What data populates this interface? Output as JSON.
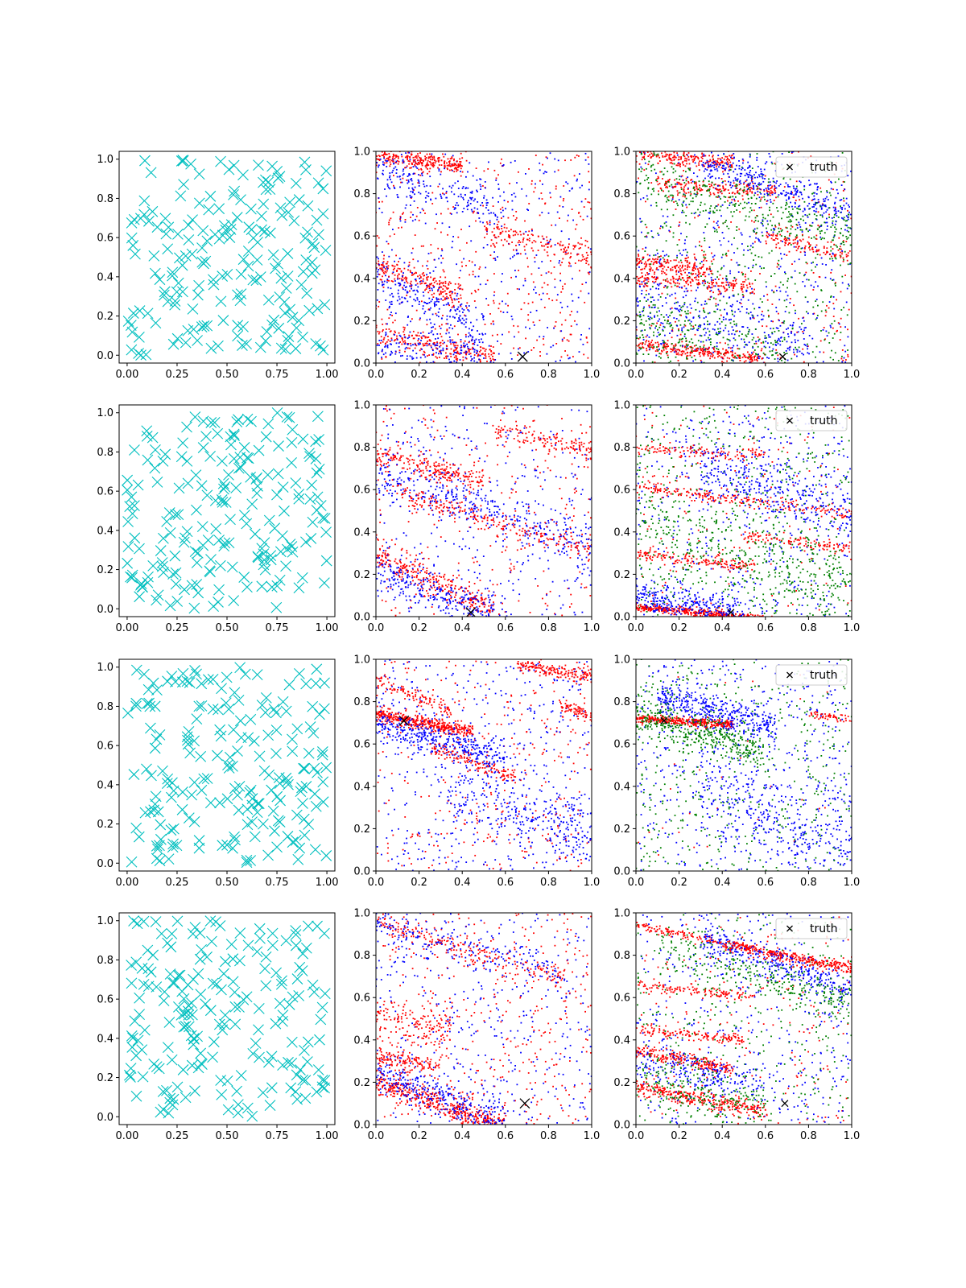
{
  "figure": {
    "rows": 4,
    "columns": 3
  },
  "colors": {
    "samples": "#00bfbf",
    "series_red": "#ff0000",
    "series_blue": "#0000ff",
    "series_green": "#008000",
    "truth": "#000000",
    "axes": "#000000"
  },
  "ticks": {
    "left_column_x": [
      "0.00",
      "0.25",
      "0.50",
      "0.75",
      "1.00"
    ],
    "left_column_y": [
      "0.0",
      "0.2",
      "0.4",
      "0.6",
      "0.8",
      "1.0"
    ],
    "right_columns_x": [
      "0.0",
      "0.2",
      "0.4",
      "0.6",
      "0.8",
      "1.0"
    ],
    "right_columns_y": [
      "0.0",
      "0.2",
      "0.4",
      "0.6",
      "0.8",
      "1.0"
    ]
  },
  "legend": {
    "truth_label": "truth",
    "placement": "upper right",
    "shown_in_column": 3
  },
  "chart_data": [
    {
      "type": "scatter",
      "row": 1,
      "column": 1,
      "marker": "x",
      "color": "samples",
      "points": 200,
      "xlim": [
        -0.04,
        1.04
      ],
      "ylim": [
        -0.04,
        1.04
      ],
      "seed": 11
    },
    {
      "type": "scatter",
      "row": 1,
      "column": 2,
      "xlim": [
        0,
        1
      ],
      "ylim": [
        0,
        1
      ],
      "truth": [
        0.68,
        0.03
      ],
      "seed": 12,
      "bands": [
        {
          "color": "series_red",
          "x0": 0.0,
          "y0": 0.98,
          "slope": -0.12,
          "xmax": 0.4,
          "count": 260,
          "spread": 0.02
        },
        {
          "color": "series_blue",
          "x0": 0.0,
          "y0": 0.93,
          "slope": -0.35,
          "xmax": 0.6,
          "count": 180,
          "spread": 0.05
        },
        {
          "color": "series_red",
          "x0": 0.0,
          "y0": 0.46,
          "slope": -0.35,
          "xmax": 0.4,
          "count": 200,
          "spread": 0.03
        },
        {
          "color": "series_blue",
          "x0": 0.0,
          "y0": 0.4,
          "slope": -0.5,
          "xmax": 0.5,
          "count": 220,
          "spread": 0.06
        },
        {
          "color": "series_red",
          "x0": 0.0,
          "y0": 0.14,
          "slope": -0.22,
          "xmax": 0.55,
          "count": 220,
          "spread": 0.03
        },
        {
          "color": "series_blue",
          "x0": 0.0,
          "y0": 0.09,
          "slope": -0.15,
          "xmax": 0.5,
          "count": 140,
          "spread": 0.04
        },
        {
          "color": "series_red",
          "x0": 0.5,
          "y0": 0.63,
          "slope": -0.25,
          "xmax": 1.0,
          "count": 150,
          "spread": 0.03
        }
      ],
      "scatter_noise": [
        {
          "color": "series_red",
          "count": 400
        },
        {
          "color": "series_blue",
          "count": 350
        }
      ]
    },
    {
      "type": "scatter",
      "row": 1,
      "column": 3,
      "xlim": [
        0,
        1
      ],
      "ylim": [
        0,
        1
      ],
      "truth": [
        0.68,
        0.03
      ],
      "seed": 13,
      "bands": [
        {
          "color": "series_red",
          "x0": 0.0,
          "y0": 0.99,
          "slope": -0.1,
          "xmax": 0.45,
          "count": 200,
          "spread": 0.02
        },
        {
          "color": "series_red",
          "x0": 0.1,
          "y0": 0.85,
          "slope": -0.08,
          "xmax": 0.65,
          "count": 180,
          "spread": 0.02
        },
        {
          "color": "series_blue",
          "x0": 0.3,
          "y0": 0.95,
          "slope": -0.35,
          "xmax": 1.0,
          "count": 260,
          "spread": 0.04
        },
        {
          "color": "series_green",
          "x0": 0.0,
          "y0": 0.9,
          "slope": -0.3,
          "xmax": 1.0,
          "count": 260,
          "spread": 0.06
        },
        {
          "color": "series_red",
          "x0": 0.0,
          "y0": 0.48,
          "slope": -0.12,
          "xmax": 0.35,
          "count": 160,
          "spread": 0.02
        },
        {
          "color": "series_red",
          "x0": 0.0,
          "y0": 0.41,
          "slope": -0.1,
          "xmax": 0.55,
          "count": 180,
          "spread": 0.02
        },
        {
          "color": "series_red",
          "x0": 0.0,
          "y0": 0.09,
          "slope": -0.12,
          "xmax": 0.6,
          "count": 260,
          "spread": 0.015
        },
        {
          "color": "series_blue",
          "x0": 0.0,
          "y0": 0.3,
          "slope": -0.3,
          "xmax": 0.8,
          "count": 250,
          "spread": 0.08
        },
        {
          "color": "series_green",
          "x0": 0.0,
          "y0": 0.2,
          "slope": -0.2,
          "xmax": 0.7,
          "count": 200,
          "spread": 0.08
        },
        {
          "color": "series_red",
          "x0": 0.6,
          "y0": 0.6,
          "slope": -0.25,
          "xmax": 1.0,
          "count": 110,
          "spread": 0.02
        }
      ],
      "scatter_noise": [
        {
          "color": "series_red",
          "count": 300
        },
        {
          "color": "series_blue",
          "count": 500
        },
        {
          "color": "series_green",
          "count": 450
        }
      ]
    },
    {
      "type": "scatter",
      "row": 2,
      "column": 1,
      "marker": "x",
      "color": "samples",
      "points": 200,
      "xlim": [
        -0.04,
        1.04
      ],
      "ylim": [
        -0.04,
        1.04
      ],
      "seed": 21
    },
    {
      "type": "scatter",
      "row": 2,
      "column": 2,
      "xlim": [
        0,
        1
      ],
      "ylim": [
        0,
        1
      ],
      "truth": [
        0.44,
        0.02
      ],
      "seed": 22,
      "bands": [
        {
          "color": "series_red",
          "x0": 0.0,
          "y0": 0.76,
          "slope": -0.25,
          "xmax": 0.5,
          "count": 220,
          "spread": 0.025
        },
        {
          "color": "series_blue",
          "x0": 0.0,
          "y0": 0.68,
          "slope": -0.35,
          "xmax": 1.0,
          "count": 350,
          "spread": 0.05
        },
        {
          "color": "series_red",
          "x0": 0.1,
          "y0": 0.58,
          "slope": -0.3,
          "xmax": 1.0,
          "count": 220,
          "spread": 0.025
        },
        {
          "color": "series_red",
          "x0": 0.0,
          "y0": 0.29,
          "slope": -0.45,
          "xmax": 0.55,
          "count": 280,
          "spread": 0.03
        },
        {
          "color": "series_blue",
          "x0": 0.0,
          "y0": 0.23,
          "slope": -0.4,
          "xmax": 0.55,
          "count": 260,
          "spread": 0.05
        },
        {
          "color": "series_red",
          "x0": 0.55,
          "y0": 0.88,
          "slope": -0.2,
          "xmax": 1.0,
          "count": 130,
          "spread": 0.025
        }
      ],
      "scatter_noise": [
        {
          "color": "series_red",
          "count": 300
        },
        {
          "color": "series_blue",
          "count": 350
        }
      ]
    },
    {
      "type": "scatter",
      "row": 2,
      "column": 3,
      "xlim": [
        0,
        1
      ],
      "ylim": [
        0,
        1
      ],
      "truth": [
        0.44,
        0.02
      ],
      "seed": 23,
      "bands": [
        {
          "color": "series_red",
          "x0": 0.0,
          "y0": 0.045,
          "slope": -0.09,
          "xmax": 0.65,
          "count": 420,
          "spread": 0.008
        },
        {
          "color": "series_blue",
          "x0": 0.0,
          "y0": 0.1,
          "slope": -0.2,
          "xmax": 0.5,
          "count": 300,
          "spread": 0.04
        },
        {
          "color": "series_red",
          "x0": 0.0,
          "y0": 0.79,
          "slope": -0.05,
          "xmax": 0.6,
          "count": 120,
          "spread": 0.015
        },
        {
          "color": "series_red",
          "x0": 0.0,
          "y0": 0.61,
          "slope": -0.12,
          "xmax": 1.0,
          "count": 220,
          "spread": 0.015
        },
        {
          "color": "series_red",
          "x0": 0.0,
          "y0": 0.3,
          "slope": -0.12,
          "xmax": 0.55,
          "count": 160,
          "spread": 0.015
        },
        {
          "color": "series_red",
          "x0": 0.5,
          "y0": 0.38,
          "slope": -0.12,
          "xmax": 1.0,
          "count": 120,
          "spread": 0.015
        },
        {
          "color": "series_blue",
          "x0": 0.3,
          "y0": 0.7,
          "slope": -0.3,
          "xmax": 1.0,
          "count": 320,
          "spread": 0.07
        },
        {
          "color": "series_green",
          "x0": 0.0,
          "y0": 0.45,
          "slope": -0.3,
          "xmax": 1.0,
          "count": 320,
          "spread": 0.09
        }
      ],
      "scatter_noise": [
        {
          "color": "series_red",
          "count": 150
        },
        {
          "color": "series_blue",
          "count": 450
        },
        {
          "color": "series_green",
          "count": 500
        }
      ]
    },
    {
      "type": "scatter",
      "row": 3,
      "column": 1,
      "marker": "x",
      "color": "samples",
      "points": 200,
      "xlim": [
        -0.04,
        1.04
      ],
      "ylim": [
        -0.04,
        1.04
      ],
      "seed": 31
    },
    {
      "type": "scatter",
      "row": 3,
      "column": 2,
      "xlim": [
        0,
        1
      ],
      "ylim": [
        0,
        1
      ],
      "truth": [
        0.13,
        0.71
      ],
      "seed": 32,
      "bands": [
        {
          "color": "series_red",
          "x0": 0.0,
          "y0": 0.74,
          "slope": -0.18,
          "xmax": 0.45,
          "count": 420,
          "spread": 0.015
        },
        {
          "color": "series_blue",
          "x0": 0.0,
          "y0": 0.7,
          "slope": -0.28,
          "xmax": 0.6,
          "count": 380,
          "spread": 0.04
        },
        {
          "color": "series_red",
          "x0": 0.0,
          "y0": 0.9,
          "slope": -0.4,
          "xmax": 0.35,
          "count": 110,
          "spread": 0.02
        },
        {
          "color": "series_red",
          "x0": 0.25,
          "y0": 0.58,
          "slope": -0.35,
          "xmax": 0.65,
          "count": 130,
          "spread": 0.02
        },
        {
          "color": "series_red",
          "x0": 0.65,
          "y0": 0.98,
          "slope": -0.18,
          "xmax": 1.0,
          "count": 160,
          "spread": 0.015
        },
        {
          "color": "series_red",
          "x0": 0.85,
          "y0": 0.78,
          "slope": -0.3,
          "xmax": 1.0,
          "count": 70,
          "spread": 0.015
        },
        {
          "color": "series_blue",
          "x0": 0.35,
          "y0": 0.35,
          "slope": -0.25,
          "xmax": 1.0,
          "count": 250,
          "spread": 0.08
        }
      ],
      "scatter_noise": [
        {
          "color": "series_red",
          "count": 320
        },
        {
          "color": "series_blue",
          "count": 480
        }
      ]
    },
    {
      "type": "scatter",
      "row": 3,
      "column": 3,
      "xlim": [
        0,
        1
      ],
      "ylim": [
        0,
        1
      ],
      "truth": [
        0.13,
        0.71
      ],
      "seed": 33,
      "bands": [
        {
          "color": "series_red",
          "x0": 0.0,
          "y0": 0.72,
          "slope": -0.06,
          "xmax": 0.45,
          "count": 360,
          "spread": 0.01
        },
        {
          "color": "series_blue",
          "x0": 0.1,
          "y0": 0.82,
          "slope": -0.25,
          "xmax": 0.65,
          "count": 380,
          "spread": 0.04
        },
        {
          "color": "series_green",
          "x0": 0.0,
          "y0": 0.74,
          "slope": -0.3,
          "xmax": 0.6,
          "count": 380,
          "spread": 0.05
        },
        {
          "color": "series_red",
          "x0": 0.8,
          "y0": 0.74,
          "slope": -0.1,
          "xmax": 1.0,
          "count": 50,
          "spread": 0.01
        },
        {
          "color": "series_blue",
          "x0": 0.3,
          "y0": 0.4,
          "slope": -0.45,
          "xmax": 1.0,
          "count": 300,
          "spread": 0.09
        }
      ],
      "scatter_noise": [
        {
          "color": "series_red",
          "count": 30
        },
        {
          "color": "series_blue",
          "count": 500
        },
        {
          "color": "series_green",
          "count": 450
        }
      ]
    },
    {
      "type": "scatter",
      "row": 4,
      "column": 1,
      "marker": "x",
      "color": "samples",
      "points": 200,
      "xlim": [
        -0.04,
        1.04
      ],
      "ylim": [
        -0.04,
        1.04
      ],
      "seed": 41
    },
    {
      "type": "scatter",
      "row": 4,
      "column": 2,
      "xlim": [
        0,
        1
      ],
      "ylim": [
        0,
        1
      ],
      "truth": [
        0.69,
        0.1
      ],
      "seed": 42,
      "bands": [
        {
          "color": "series_red",
          "x0": 0.0,
          "y0": 0.2,
          "slope": -0.35,
          "xmax": 0.6,
          "count": 460,
          "spread": 0.03
        },
        {
          "color": "series_blue",
          "x0": 0.0,
          "y0": 0.25,
          "slope": -0.4,
          "xmax": 0.6,
          "count": 320,
          "spread": 0.05
        },
        {
          "color": "series_red",
          "x0": 0.0,
          "y0": 0.32,
          "slope": -0.15,
          "xmax": 0.3,
          "count": 120,
          "spread": 0.02
        },
        {
          "color": "series_red",
          "x0": 0.0,
          "y0": 0.95,
          "slope": -0.3,
          "xmax": 0.9,
          "count": 200,
          "spread": 0.03
        },
        {
          "color": "series_blue",
          "x0": 0.0,
          "y0": 0.94,
          "slope": -0.25,
          "xmax": 0.9,
          "count": 170,
          "spread": 0.04
        },
        {
          "color": "series_red",
          "x0": 0.0,
          "y0": 0.5,
          "slope": -0.2,
          "xmax": 0.35,
          "count": 150,
          "spread": 0.05
        }
      ],
      "scatter_noise": [
        {
          "color": "series_red",
          "count": 380
        },
        {
          "color": "series_blue",
          "count": 380
        }
      ]
    },
    {
      "type": "scatter",
      "row": 4,
      "column": 3,
      "xlim": [
        0,
        1
      ],
      "ylim": [
        0,
        1
      ],
      "truth": [
        0.69,
        0.1
      ],
      "seed": 43,
      "bands": [
        {
          "color": "series_red",
          "x0": 0.0,
          "y0": 0.94,
          "slope": -0.2,
          "xmax": 1.0,
          "count": 280,
          "spread": 0.01
        },
        {
          "color": "series_red",
          "x0": 0.0,
          "y0": 0.35,
          "slope": -0.2,
          "xmax": 0.45,
          "count": 220,
          "spread": 0.015
        },
        {
          "color": "series_red",
          "x0": 0.0,
          "y0": 0.45,
          "slope": -0.1,
          "xmax": 0.5,
          "count": 140,
          "spread": 0.012
        },
        {
          "color": "series_red",
          "x0": 0.0,
          "y0": 0.66,
          "slope": -0.1,
          "xmax": 0.55,
          "count": 120,
          "spread": 0.012
        },
        {
          "color": "series_red",
          "x0": 0.0,
          "y0": 0.18,
          "slope": -0.2,
          "xmax": 0.6,
          "count": 300,
          "spread": 0.02
        },
        {
          "color": "series_blue",
          "x0": 0.3,
          "y0": 0.88,
          "slope": -0.35,
          "xmax": 1.0,
          "count": 340,
          "spread": 0.04
        },
        {
          "color": "series_green",
          "x0": 0.1,
          "y0": 0.84,
          "slope": -0.3,
          "xmax": 1.0,
          "count": 250,
          "spread": 0.05
        },
        {
          "color": "series_red",
          "x0": 0.4,
          "y0": 0.85,
          "slope": -0.2,
          "xmax": 1.0,
          "count": 160,
          "spread": 0.015
        },
        {
          "color": "series_blue",
          "x0": 0.0,
          "y0": 0.3,
          "slope": -0.2,
          "xmax": 0.6,
          "count": 200,
          "spread": 0.06
        },
        {
          "color": "series_green",
          "x0": 0.0,
          "y0": 0.22,
          "slope": -0.2,
          "xmax": 0.6,
          "count": 200,
          "spread": 0.06
        }
      ],
      "scatter_noise": [
        {
          "color": "series_red",
          "count": 220
        },
        {
          "color": "series_blue",
          "count": 380
        },
        {
          "color": "series_green",
          "count": 350
        }
      ]
    }
  ]
}
